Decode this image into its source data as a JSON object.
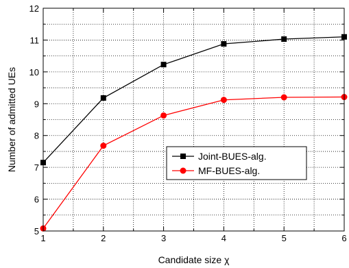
{
  "chart_data": {
    "type": "line",
    "xlabel": "Candidate size χ",
    "ylabel": "Number of admitted UEs",
    "x": [
      1,
      2,
      3,
      4,
      5,
      6
    ],
    "xlim": [
      1,
      6
    ],
    "ylim": [
      5,
      12
    ],
    "xticks": [
      1,
      2,
      3,
      4,
      5,
      6
    ],
    "yticks": [
      5,
      6,
      7,
      8,
      9,
      10,
      11,
      12
    ],
    "grid": true,
    "grid_style": "dotted",
    "legend_position": "center-right",
    "series": [
      {
        "name": "Joint-BUES-alg.",
        "values": [
          7.15,
          9.18,
          10.23,
          10.88,
          11.03,
          11.1
        ],
        "color": "#000000",
        "marker": "square"
      },
      {
        "name": "MF-BUES-alg.",
        "values": [
          5.08,
          7.68,
          8.63,
          9.12,
          9.2,
          9.21
        ],
        "color": "#ff0000",
        "marker": "circle"
      }
    ]
  }
}
